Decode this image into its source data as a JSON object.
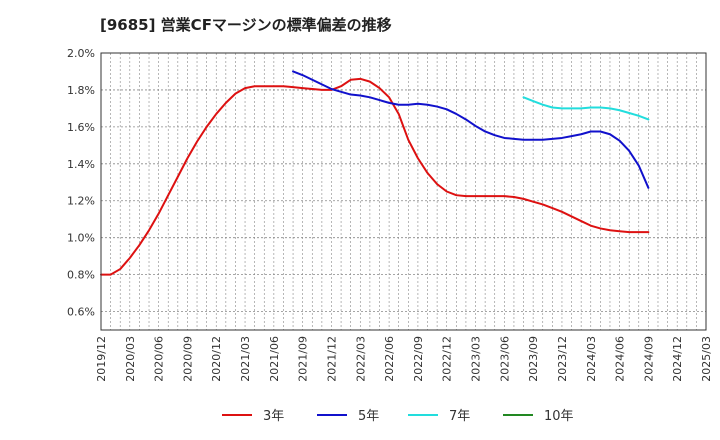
{
  "chart_data": {
    "type": "line",
    "title": "[9685]  営業CFマージンの標準偏差の推移",
    "xlabel": "",
    "ylabel": "",
    "ylim": [
      0.5,
      2.0
    ],
    "yticks": [
      "0.6%",
      "0.8%",
      "1.0%",
      "1.2%",
      "1.4%",
      "1.6%",
      "1.8%",
      "2.0%"
    ],
    "ytick_values": [
      0.6,
      0.8,
      1.0,
      1.2,
      1.4,
      1.6,
      1.8,
      2.0
    ],
    "xticks": [
      "2019/12",
      "2020/03",
      "2020/06",
      "2020/09",
      "2020/12",
      "2021/03",
      "2021/06",
      "2021/09",
      "2021/12",
      "2022/03",
      "2022/06",
      "2022/09",
      "2022/12",
      "2023/03",
      "2023/06",
      "2023/09",
      "2023/12",
      "2024/03",
      "2024/06",
      "2024/09",
      "2024/12",
      "2025/03"
    ],
    "grid": true,
    "legend_position": "bottom",
    "series": [
      {
        "name": "3年",
        "color": "#dd1111",
        "points": [
          [
            "2019/12",
            0.8
          ],
          [
            "2020/01",
            0.8
          ],
          [
            "2020/02",
            0.83
          ],
          [
            "2020/03",
            0.89
          ],
          [
            "2020/04",
            0.96
          ],
          [
            "2020/05",
            1.04
          ],
          [
            "2020/06",
            1.13
          ],
          [
            "2020/07",
            1.23
          ],
          [
            "2020/08",
            1.33
          ],
          [
            "2020/09",
            1.43
          ],
          [
            "2020/10",
            1.52
          ],
          [
            "2020/11",
            1.6
          ],
          [
            "2020/12",
            1.67
          ],
          [
            "2021/01",
            1.73
          ],
          [
            "2021/02",
            1.78
          ],
          [
            "2021/03",
            1.81
          ],
          [
            "2021/04",
            1.82
          ],
          [
            "2021/05",
            1.82
          ],
          [
            "2021/06",
            1.82
          ],
          [
            "2021/07",
            1.82
          ],
          [
            "2021/08",
            1.815
          ],
          [
            "2021/09",
            1.81
          ],
          [
            "2021/10",
            1.805
          ],
          [
            "2021/11",
            1.8
          ],
          [
            "2021/12",
            1.8
          ],
          [
            "2022/01",
            1.82
          ],
          [
            "2022/02",
            1.855
          ],
          [
            "2022/03",
            1.86
          ],
          [
            "2022/04",
            1.845
          ],
          [
            "2022/05",
            1.81
          ],
          [
            "2022/06",
            1.76
          ],
          [
            "2022/07",
            1.67
          ],
          [
            "2022/08",
            1.53
          ],
          [
            "2022/09",
            1.43
          ],
          [
            "2022/10",
            1.35
          ],
          [
            "2022/11",
            1.29
          ],
          [
            "2022/12",
            1.25
          ],
          [
            "2023/01",
            1.23
          ],
          [
            "2023/02",
            1.225
          ],
          [
            "2023/03",
            1.225
          ],
          [
            "2023/04",
            1.225
          ],
          [
            "2023/05",
            1.225
          ],
          [
            "2023/06",
            1.225
          ],
          [
            "2023/07",
            1.22
          ],
          [
            "2023/08",
            1.21
          ],
          [
            "2023/09",
            1.195
          ],
          [
            "2023/10",
            1.18
          ],
          [
            "2023/11",
            1.16
          ],
          [
            "2023/12",
            1.14
          ],
          [
            "2024/01",
            1.115
          ],
          [
            "2024/02",
            1.09
          ],
          [
            "2024/03",
            1.065
          ],
          [
            "2024/04",
            1.05
          ],
          [
            "2024/05",
            1.04
          ],
          [
            "2024/06",
            1.035
          ],
          [
            "2024/07",
            1.03
          ],
          [
            "2024/08",
            1.03
          ],
          [
            "2024/09",
            1.03
          ]
        ]
      },
      {
        "name": "5年",
        "color": "#1111cc",
        "points": [
          [
            "2021/08",
            1.9
          ],
          [
            "2021/09",
            1.88
          ],
          [
            "2021/10",
            1.855
          ],
          [
            "2021/11",
            1.83
          ],
          [
            "2021/12",
            1.805
          ],
          [
            "2022/01",
            1.79
          ],
          [
            "2022/02",
            1.775
          ],
          [
            "2022/03",
            1.77
          ],
          [
            "2022/04",
            1.76
          ],
          [
            "2022/05",
            1.745
          ],
          [
            "2022/06",
            1.73
          ],
          [
            "2022/07",
            1.72
          ],
          [
            "2022/08",
            1.72
          ],
          [
            "2022/09",
            1.725
          ],
          [
            "2022/10",
            1.72
          ],
          [
            "2022/11",
            1.71
          ],
          [
            "2022/12",
            1.695
          ],
          [
            "2023/01",
            1.67
          ],
          [
            "2023/02",
            1.64
          ],
          [
            "2023/03",
            1.605
          ],
          [
            "2023/04",
            1.575
          ],
          [
            "2023/05",
            1.555
          ],
          [
            "2023/06",
            1.54
          ],
          [
            "2023/07",
            1.535
          ],
          [
            "2023/08",
            1.53
          ],
          [
            "2023/09",
            1.53
          ],
          [
            "2023/10",
            1.53
          ],
          [
            "2023/11",
            1.535
          ],
          [
            "2023/12",
            1.54
          ],
          [
            "2024/01",
            1.55
          ],
          [
            "2024/02",
            1.56
          ],
          [
            "2024/03",
            1.575
          ],
          [
            "2024/04",
            1.575
          ],
          [
            "2024/05",
            1.56
          ],
          [
            "2024/06",
            1.525
          ],
          [
            "2024/07",
            1.47
          ],
          [
            "2024/08",
            1.39
          ],
          [
            "2024/09",
            1.27
          ]
        ]
      },
      {
        "name": "7年",
        "color": "#22dddd",
        "points": [
          [
            "2023/08",
            1.76
          ],
          [
            "2023/09",
            1.74
          ],
          [
            "2023/10",
            1.72
          ],
          [
            "2023/11",
            1.705
          ],
          [
            "2023/12",
            1.7
          ],
          [
            "2024/01",
            1.7
          ],
          [
            "2024/02",
            1.7
          ],
          [
            "2024/03",
            1.705
          ],
          [
            "2024/04",
            1.705
          ],
          [
            "2024/05",
            1.7
          ],
          [
            "2024/06",
            1.69
          ],
          [
            "2024/07",
            1.675
          ],
          [
            "2024/08",
            1.66
          ],
          [
            "2024/09",
            1.64
          ]
        ]
      },
      {
        "name": "10年",
        "color": "#228822",
        "points": []
      }
    ]
  }
}
